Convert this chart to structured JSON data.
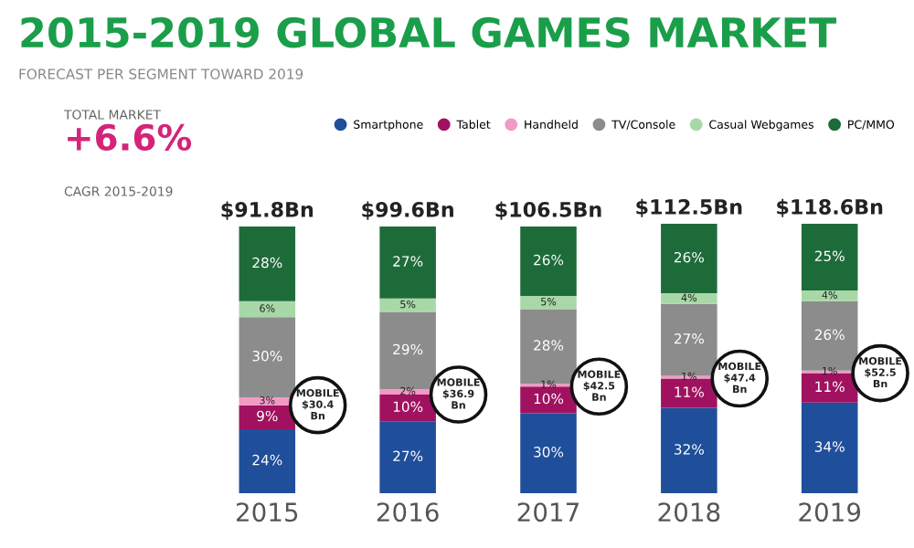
{
  "chart_data": {
    "type": "bar",
    "stacked": true,
    "title": "2015-2019 GLOBAL GAMES MARKET",
    "subtitle": "FORECAST PER SEGMENT TOWARD 2019",
    "categories": [
      "2015",
      "2016",
      "2017",
      "2018",
      "2019"
    ],
    "series": [
      {
        "name": "Smartphone",
        "color": "#1f4e9a",
        "values": [
          24,
          27,
          30,
          32,
          34
        ],
        "value_labels": [
          "24%",
          "27%",
          "30%",
          "32%",
          "34%"
        ]
      },
      {
        "name": "Tablet",
        "color": "#a0125f",
        "values": [
          9,
          10,
          10,
          11,
          11
        ],
        "value_labels": [
          "9%",
          "10%",
          "10%",
          "11%",
          "11%"
        ]
      },
      {
        "name": "Handheld",
        "color": "#f29ac4",
        "values": [
          3,
          2,
          1,
          1,
          1
        ],
        "value_labels": [
          "3%",
          "2%",
          "1%",
          "1%",
          "1%"
        ]
      },
      {
        "name": "TV/Console",
        "color": "#8c8c8c",
        "values": [
          30,
          29,
          28,
          27,
          26
        ],
        "value_labels": [
          "30%",
          "29%",
          "28%",
          "27%",
          "26%"
        ]
      },
      {
        "name": "Casual Webgames",
        "color": "#a8d8a8",
        "values": [
          6,
          5,
          5,
          4,
          4
        ],
        "value_labels": [
          "6%",
          "5%",
          "5%",
          "4%",
          "4%"
        ]
      },
      {
        "name": "PC/MMO",
        "color": "#1e6b3a",
        "values": [
          28,
          27,
          26,
          26,
          25
        ],
        "value_labels": [
          "28%",
          "27%",
          "26%",
          "26%",
          "25%"
        ]
      }
    ],
    "annotations": [
      "TOTAL MARKET",
      "+6.6%",
      "CAGR 2015-2019",
      {
        "text": "$91.8Bn",
        "x": "2015",
        "y": 100
      },
      {
        "text": "$99.6Bn",
        "x": "2016",
        "y": 100
      },
      {
        "text": "$106.5Bn",
        "x": "2017",
        "y": 100
      },
      {
        "text": "$112.5Bn",
        "x": "2018",
        "y": 101
      },
      {
        "text": "$118.6Bn",
        "x": "2019",
        "y": 101
      },
      {
        "text": "MOBILE\n$30.4\nBn",
        "x": "2015",
        "y": 33
      },
      {
        "text": "MOBILE\n$36.9\nBn",
        "x": "2016",
        "y": 37
      },
      {
        "text": "MOBILE\n$42.5\nBn",
        "x": "2017",
        "y": 40
      },
      {
        "text": "MOBILE\n$47.4\nBn",
        "x": "2018",
        "y": 43
      },
      {
        "text": "MOBILE\n$52.5\nBn",
        "x": "2019",
        "y": 45
      }
    ],
    "legend": "top right",
    "grid": false
  }
}
